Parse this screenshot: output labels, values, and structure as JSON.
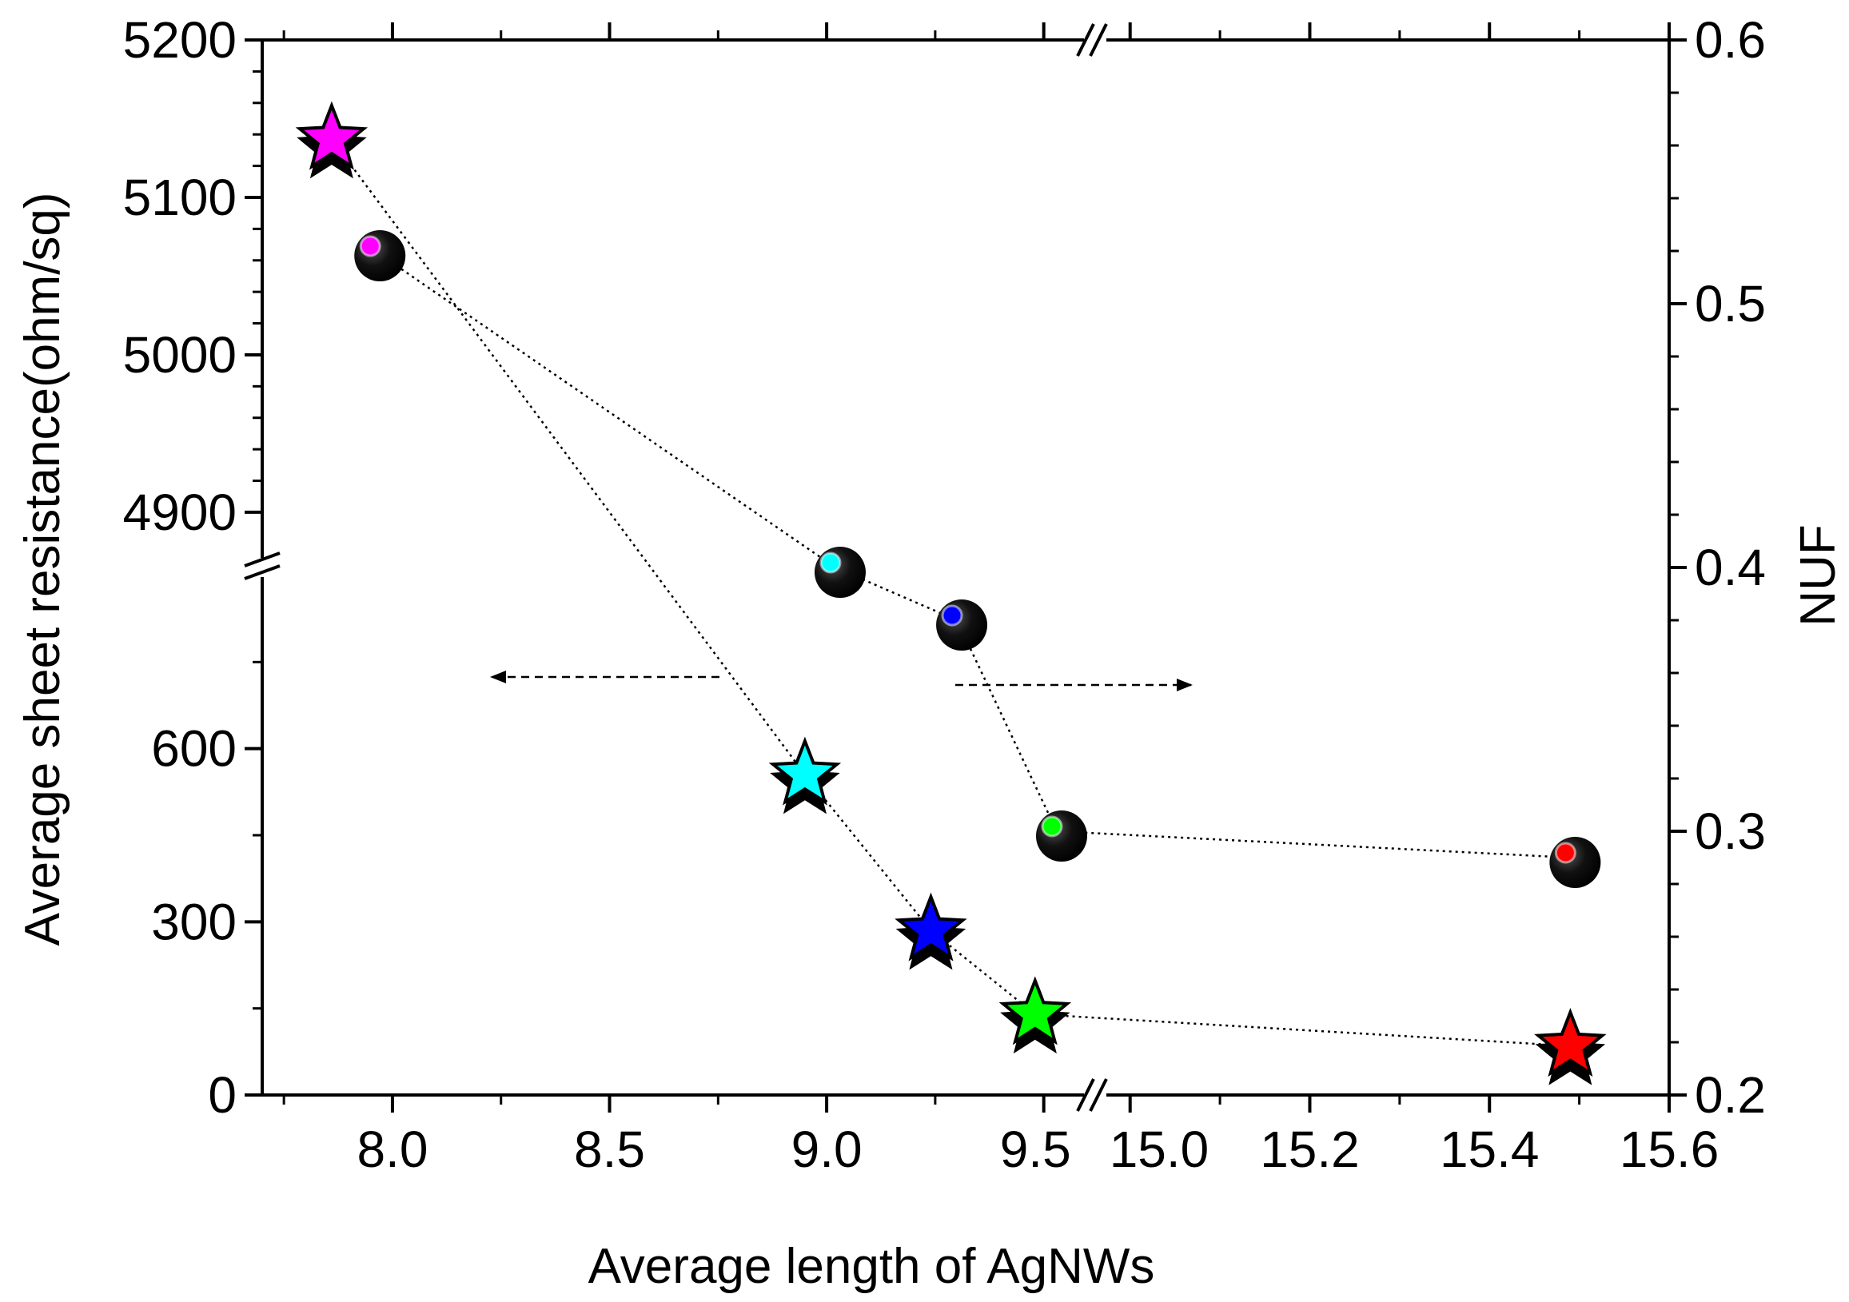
{
  "chart_data": {
    "type": "scatter",
    "xlabel": "Average length of AgNWs",
    "ylabel_left": "Average sheet resistance(ohm/sq)",
    "ylabel_right": "NUF",
    "x_axis": {
      "broken": true,
      "segments": [
        {
          "range": [
            7.7,
            9.6
          ],
          "ticks": [
            8.0,
            8.5,
            9.0,
            9.5
          ],
          "tick_labels": [
            "8.0",
            "8.5",
            "9.0",
            "9.5"
          ]
        },
        {
          "range": [
            14.97,
            15.6
          ],
          "ticks": [
            15.0,
            15.2,
            15.4,
            15.6
          ],
          "tick_labels": [
            "15.0",
            "15.2",
            "15.4",
            "15.6"
          ]
        }
      ]
    },
    "y_left": {
      "broken": true,
      "segments": [
        {
          "range": [
            0,
            900
          ],
          "ticks": [
            0,
            300,
            600
          ],
          "tick_labels": [
            "0",
            "300",
            "600"
          ]
        },
        {
          "range": [
            4870,
            5200
          ],
          "ticks": [
            4900,
            5000,
            5100,
            5200
          ],
          "tick_labels": [
            "4900",
            "5000",
            "5100",
            "5200"
          ]
        }
      ]
    },
    "y_right": {
      "range": [
        0.2,
        0.6
      ],
      "ticks": [
        0.2,
        0.3,
        0.4,
        0.5,
        0.6
      ],
      "tick_labels": [
        "0.2",
        "0.3",
        "0.4",
        "0.5",
        "0.6"
      ]
    },
    "series": [
      {
        "name": "Average sheet resistance",
        "axis": "left",
        "marker": "star",
        "line": "dotted",
        "points": [
          {
            "x": 7.86,
            "y": 5137,
            "color": "#ff00ff"
          },
          {
            "x": 8.95,
            "y": 555,
            "color": "#00ffff"
          },
          {
            "x": 9.24,
            "y": 285,
            "color": "#0000ff"
          },
          {
            "x": 9.48,
            "y": 140,
            "color": "#00ff00"
          },
          {
            "x": 15.49,
            "y": 85,
            "color": "#ff0000"
          }
        ]
      },
      {
        "name": "NUF",
        "axis": "right",
        "marker": "sphere",
        "line": "dotted",
        "points": [
          {
            "x": 7.96,
            "y": 0.52,
            "color": "#ff00ff"
          },
          {
            "x": 9.02,
            "y": 0.4,
            "color": "#00ffff"
          },
          {
            "x": 9.3,
            "y": 0.38,
            "color": "#0000ff"
          },
          {
            "x": 9.53,
            "y": 0.3,
            "color": "#00ff00"
          },
          {
            "x": 15.49,
            "y": 0.29,
            "color": "#ff0000"
          }
        ]
      }
    ],
    "annotations": [
      {
        "type": "arrow",
        "direction": "left",
        "points_to": "left axis"
      },
      {
        "type": "arrow",
        "direction": "right",
        "points_to": "right axis"
      }
    ]
  }
}
